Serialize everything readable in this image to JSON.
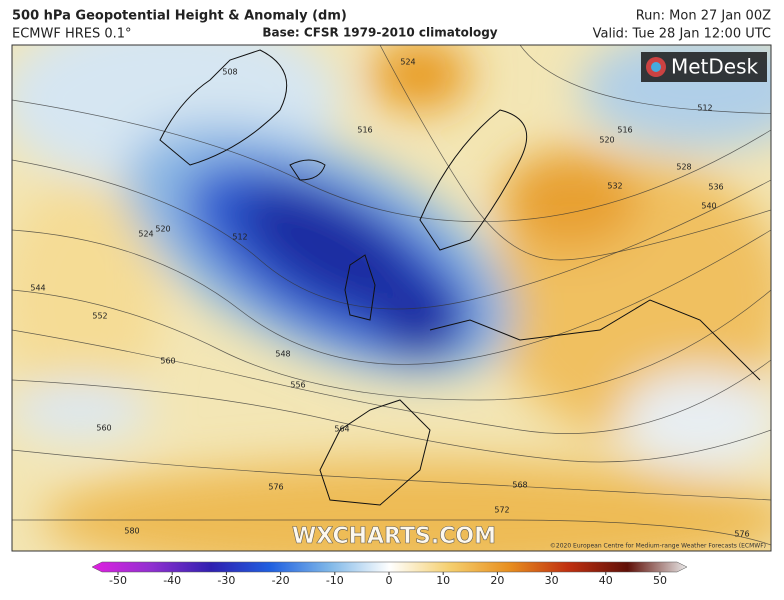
{
  "header": {
    "title": "500 hPa Geopotential Height & Anomaly (dm)",
    "model": "ECMWF HRES 0.1°",
    "base": "Base: CFSR 1979-2010 climatology",
    "run": "Run: Mon 27 Jan 00Z",
    "valid": "Valid: Tue 28 Jan 12:00 UTC"
  },
  "map": {
    "logo": "MetDesk",
    "watermark": "WXCHARTS.COM",
    "copyright": "©2020 European Centre for Medium-range Weather Forecasts (ECMWF)",
    "contour_labels": [
      508,
      524,
      516,
      512,
      516,
      520,
      528,
      532,
      536,
      540,
      520,
      524,
      512,
      544,
      552,
      560,
      548,
      556,
      560,
      564,
      576,
      568,
      572,
      580,
      576
    ]
  },
  "colorbar": {
    "range": [
      -50,
      50
    ],
    "ticks": [
      -50,
      -40,
      -30,
      -20,
      -10,
      0,
      10,
      20,
      30,
      40,
      50
    ]
  }
}
